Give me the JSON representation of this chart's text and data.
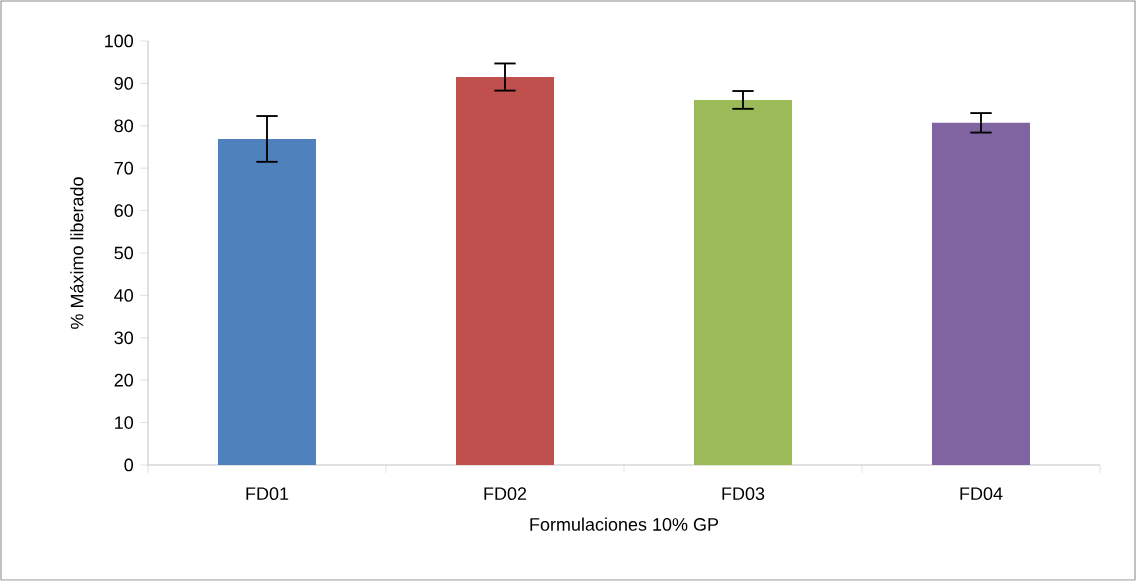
{
  "chart_data": {
    "type": "bar",
    "xlabel": "Formulaciones 10% GP",
    "ylabel": "% Máximo liberado",
    "categories": [
      "FD01",
      "FD02",
      "FD03",
      "FD04"
    ],
    "values": [
      76.9,
      91.5,
      86.1,
      80.7
    ],
    "errors": [
      5.4,
      3.2,
      2.1,
      2.3
    ],
    "colors": [
      "#4f81bd",
      "#c0504d",
      "#9bbb59",
      "#8064a2"
    ],
    "ylim": [
      0,
      100
    ],
    "yticks": [
      0,
      10,
      20,
      30,
      40,
      50,
      60,
      70,
      80,
      90,
      100
    ],
    "grid": false
  }
}
